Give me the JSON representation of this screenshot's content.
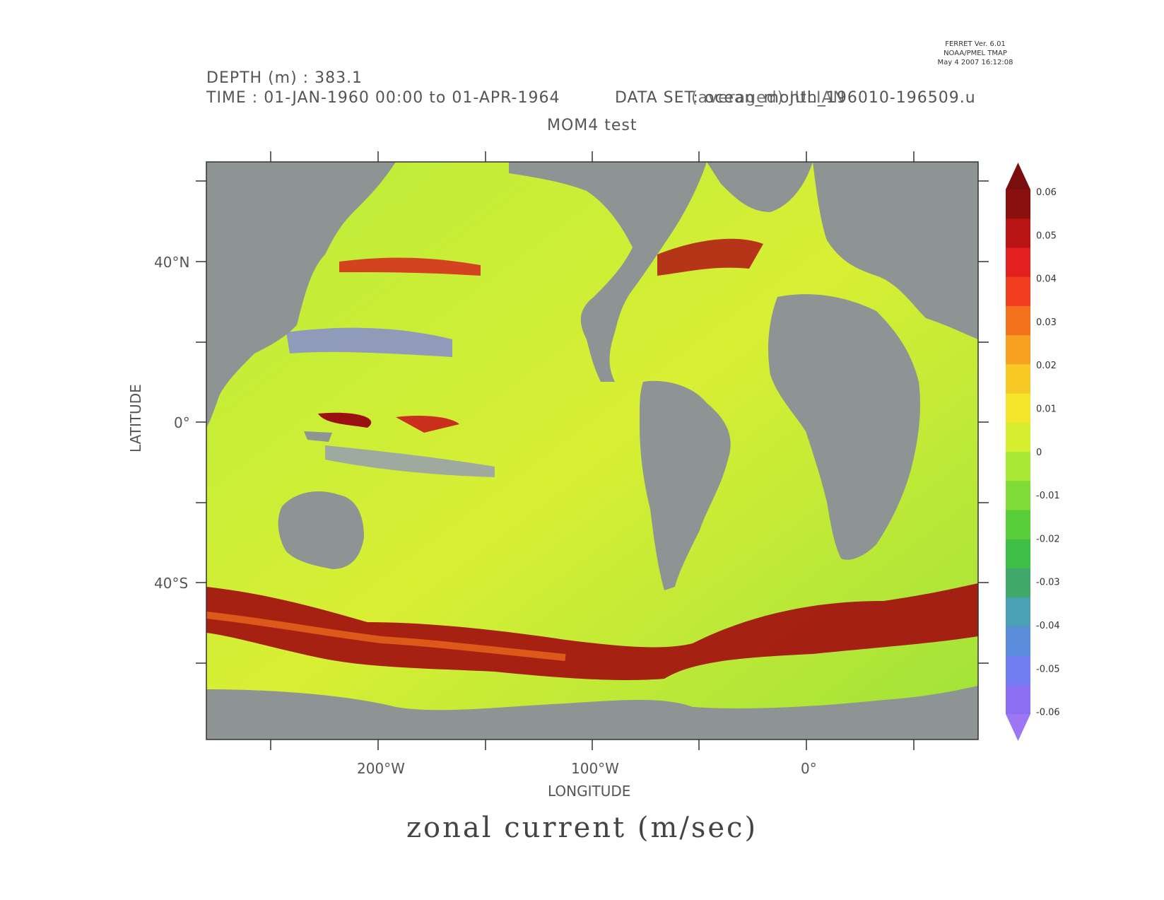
{
  "stamp": {
    "line1": "FERRET Ver. 6.01",
    "line2": "NOAA/PMEL TMAP",
    "line3": "May  4 2007 16:12:08"
  },
  "header": {
    "depth": "DEPTH (m) : 383.1",
    "time": "TIME : 01-JAN-1960 00:00 to 01-APR-1964",
    "dataset": "DATA SET: ocean_month_196010-196509.u",
    "dataset_overlay": "(averaged) JULIAN",
    "subtitle": "MOM4 test"
  },
  "axes": {
    "xlabel": "LONGITUDE",
    "ylabel": "LATITUDE",
    "xticks": [
      "200°W",
      "100°W",
      "0°"
    ],
    "yticks": [
      "40°N",
      "0°",
      "40°S"
    ]
  },
  "caption": "zonal current (m/sec)",
  "colorbar": {
    "labels": [
      "0.06",
      "0.05",
      "0.04",
      "0.03",
      "0.02",
      "0.01",
      "0",
      "-0.01",
      "-0.02",
      "-0.03",
      "-0.04",
      "-0.05",
      "-0.06"
    ],
    "colors": [
      "#8b0f0f",
      "#b81414",
      "#e32020",
      "#ef3d1e",
      "#f4721e",
      "#f7a021",
      "#f8c825",
      "#f5e52a",
      "#d5ee2f",
      "#a9e835",
      "#7fdc38",
      "#58cf3a",
      "#3fbf45",
      "#3fa96a",
      "#4aa0b4",
      "#5b8ddc",
      "#6f7df0",
      "#8a6ff2"
    ],
    "top_arrow": "#7a0d0d",
    "bottom_arrow": "#9d77f3"
  },
  "map": {
    "land": "#8e9494"
  }
}
